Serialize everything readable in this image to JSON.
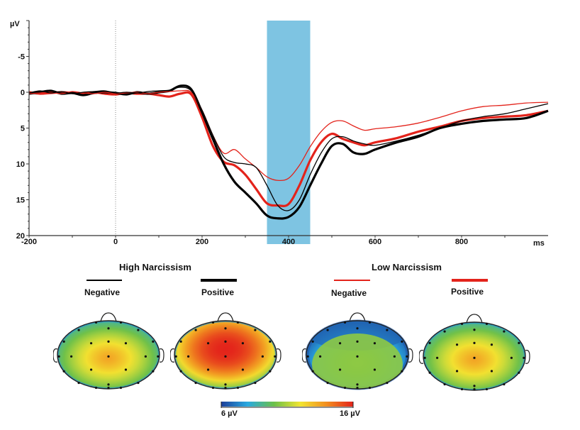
{
  "chart_data": [
    {
      "type": "line",
      "title": "",
      "xlabel": "ms",
      "ylabel": "µV",
      "xlim": [
        -200,
        1000
      ],
      "ylim": [
        -10,
        20
      ],
      "y_inverted": true,
      "x_ticks": [
        -200,
        0,
        200,
        400,
        600,
        800
      ],
      "x_tick_labels": [
        "-200",
        "0",
        "200",
        "400",
        "600",
        "800"
      ],
      "y_ticks": [
        -5,
        0,
        5,
        10,
        15,
        20
      ],
      "y_tick_labels": [
        "-5",
        "0",
        "5",
        "10",
        "15",
        "20"
      ],
      "grid": false,
      "zero_line_x": 0,
      "highlight_window": {
        "from": 350,
        "to": 450,
        "color": "#7ec4e2"
      },
      "x": [
        -200,
        -175,
        -150,
        -125,
        -100,
        -75,
        -50,
        -25,
        0,
        25,
        50,
        75,
        100,
        125,
        150,
        175,
        200,
        225,
        250,
        275,
        300,
        325,
        350,
        375,
        400,
        425,
        450,
        475,
        500,
        525,
        550,
        575,
        600,
        650,
        700,
        750,
        800,
        850,
        900,
        950,
        1000
      ],
      "series": [
        {
          "name": "High Narcissism Negative",
          "color": "#000000",
          "style": "thin",
          "values": [
            0.1,
            -0.2,
            0.1,
            -0.1,
            0.2,
            0.0,
            -0.1,
            -0.2,
            0.1,
            0.0,
            0.1,
            -0.1,
            -0.2,
            -0.3,
            -0.7,
            -0.2,
            2.5,
            6.0,
            9.0,
            9.8,
            10.0,
            10.5,
            13.0,
            15.8,
            16.5,
            15.0,
            11.5,
            8.5,
            6.5,
            6.2,
            6.8,
            7.2,
            7.4,
            6.8,
            6.0,
            5.0,
            4.0,
            3.4,
            3.0,
            2.3,
            1.6
          ]
        },
        {
          "name": "High Narcissism Positive",
          "color": "#000000",
          "style": "thick",
          "values": [
            0.2,
            0.0,
            -0.2,
            0.2,
            0.1,
            0.4,
            0.1,
            0.0,
            0.1,
            0.3,
            0.0,
            0.2,
            0.0,
            -0.2,
            -0.9,
            -0.4,
            2.8,
            6.5,
            10.0,
            12.5,
            14.0,
            15.5,
            17.2,
            17.6,
            17.4,
            16.0,
            13.0,
            10.0,
            7.5,
            7.2,
            8.4,
            8.6,
            8.0,
            7.0,
            6.2,
            5.0,
            4.4,
            4.0,
            3.8,
            3.6,
            2.6
          ]
        },
        {
          "name": "Low Narcissism Negative",
          "color": "#e3231b",
          "style": "thin",
          "values": [
            0.2,
            0.1,
            0.0,
            0.2,
            -0.1,
            0.1,
            0.2,
            0.0,
            0.2,
            0.1,
            0.0,
            0.2,
            0.0,
            -0.1,
            -0.2,
            0.0,
            2.5,
            6.0,
            8.5,
            8.0,
            9.3,
            10.5,
            11.8,
            12.3,
            12.0,
            10.2,
            7.6,
            5.5,
            4.2,
            4.0,
            4.7,
            5.3,
            5.1,
            4.8,
            4.3,
            3.5,
            2.6,
            2.0,
            1.8,
            1.5,
            1.4
          ]
        },
        {
          "name": "Low Narcissism Positive",
          "color": "#e3231b",
          "style": "thick",
          "values": [
            0.0,
            0.2,
            0.1,
            0.0,
            0.1,
            0.2,
            0.0,
            0.2,
            0.3,
            0.1,
            0.2,
            0.2,
            0.4,
            0.6,
            0.2,
            0.3,
            3.5,
            7.5,
            9.7,
            10.2,
            11.5,
            13.5,
            15.5,
            15.8,
            15.6,
            13.0,
            9.5,
            7.0,
            5.8,
            6.5,
            7.0,
            7.4,
            7.0,
            6.4,
            5.5,
            4.8,
            4.0,
            3.6,
            3.4,
            3.2,
            2.6
          ]
        }
      ]
    },
    {
      "type": "heatmap",
      "subtype": "scalp-topography",
      "colorbar": {
        "min": 6,
        "max": 16,
        "unit": "µV",
        "min_label": "6 µV",
        "max_label": "16 µV",
        "colors": [
          "#1d3f9a",
          "#29a9e0",
          "#6cc04a",
          "#f2e531",
          "#f28d1f",
          "#e3231b"
        ]
      },
      "maps": [
        {
          "group": "High Narcissism",
          "condition": "Negative",
          "center_value": 13.5,
          "edge_value": 8.5,
          "peak": "central"
        },
        {
          "group": "High Narcissism",
          "condition": "Positive",
          "center_value": 16,
          "edge_value": 9,
          "peak": "fronto-central broad"
        },
        {
          "group": "Low Narcissism",
          "condition": "Negative",
          "center_value": 10.5,
          "edge_value": 6.5,
          "peak": "central, frontal low"
        },
        {
          "group": "Low Narcissism",
          "condition": "Positive",
          "center_value": 13.5,
          "edge_value": 8.5,
          "peak": "central"
        }
      ]
    }
  ],
  "axis": {
    "y_unit": "µV",
    "x_unit": "ms"
  },
  "legend": {
    "groups": [
      {
        "title": "High Narcissism",
        "entries": [
          {
            "label": "Negative",
            "color": "#000000",
            "style": "thin"
          },
          {
            "label": "Positive",
            "color": "#000000",
            "style": "thick"
          }
        ]
      },
      {
        "title": "Low Narcissism",
        "entries": [
          {
            "label": "Negative",
            "color": "#e3231b",
            "style": "thin"
          },
          {
            "label": "Positive",
            "color": "#e3231b",
            "style": "thick"
          }
        ]
      }
    ]
  },
  "colorbar": {
    "min_label": "6 µV",
    "max_label": "16 µV"
  }
}
